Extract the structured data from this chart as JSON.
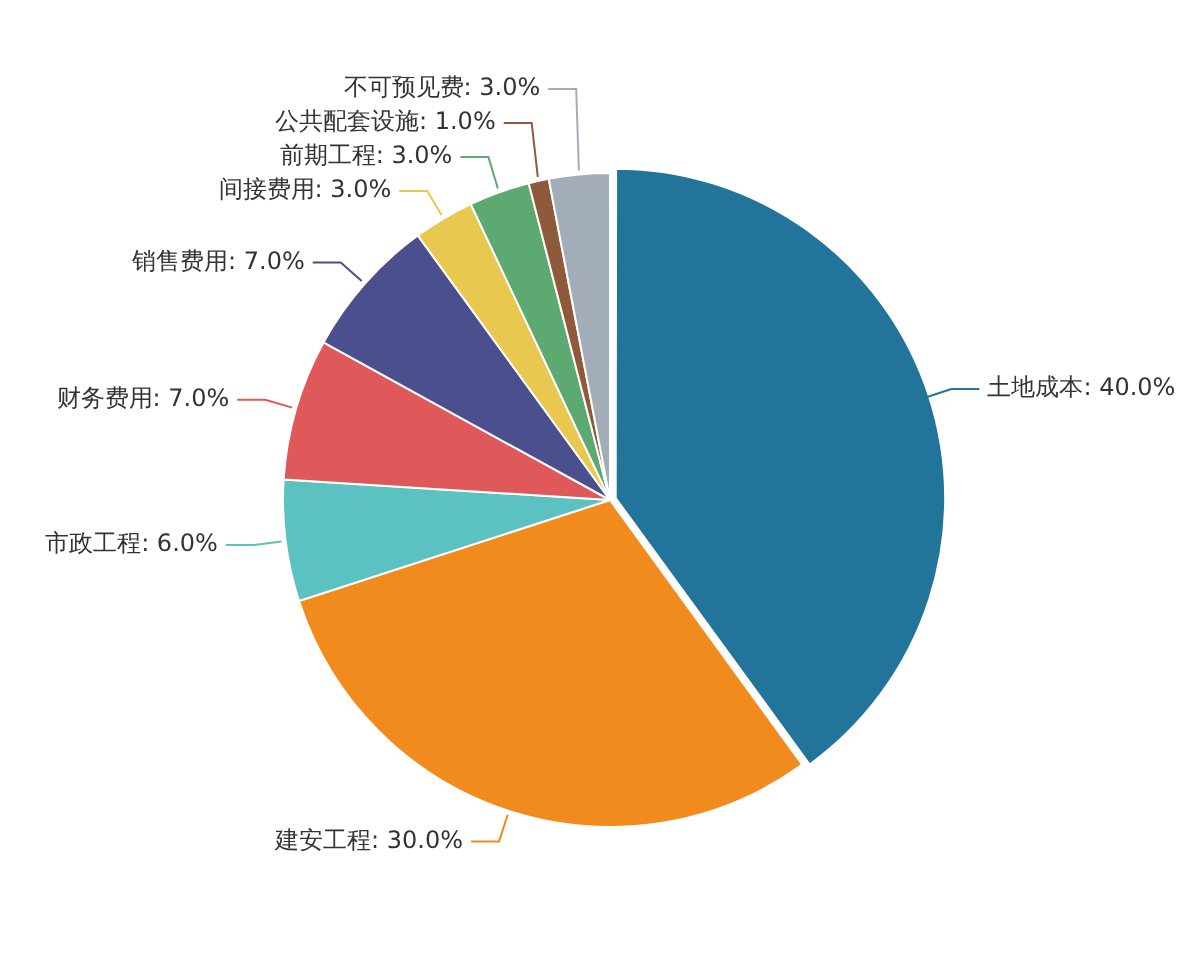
{
  "chart_data": {
    "type": "pie",
    "categories": [
      "土地成本",
      "建安工程",
      "市政工程",
      "财务费用",
      "销售费用",
      "间接费用",
      "前期工程",
      "公共配套设施",
      "不可预见费"
    ],
    "values": [
      40,
      30,
      6,
      7,
      7,
      3,
      3,
      1,
      3
    ],
    "value_labels": [
      "40.0%",
      "30.0%",
      "6.0%",
      "7.0%",
      "7.0%",
      "3.0%",
      "3.0%",
      "1.0%",
      "3.0%"
    ],
    "colors": [
      "#22749a",
      "#f28b1d",
      "#5bc2c1",
      "#e0595a",
      "#4b4f8d",
      "#e9c84f",
      "#5ca971",
      "#8e5a3b",
      "#a3adb8"
    ],
    "legend": false
  }
}
